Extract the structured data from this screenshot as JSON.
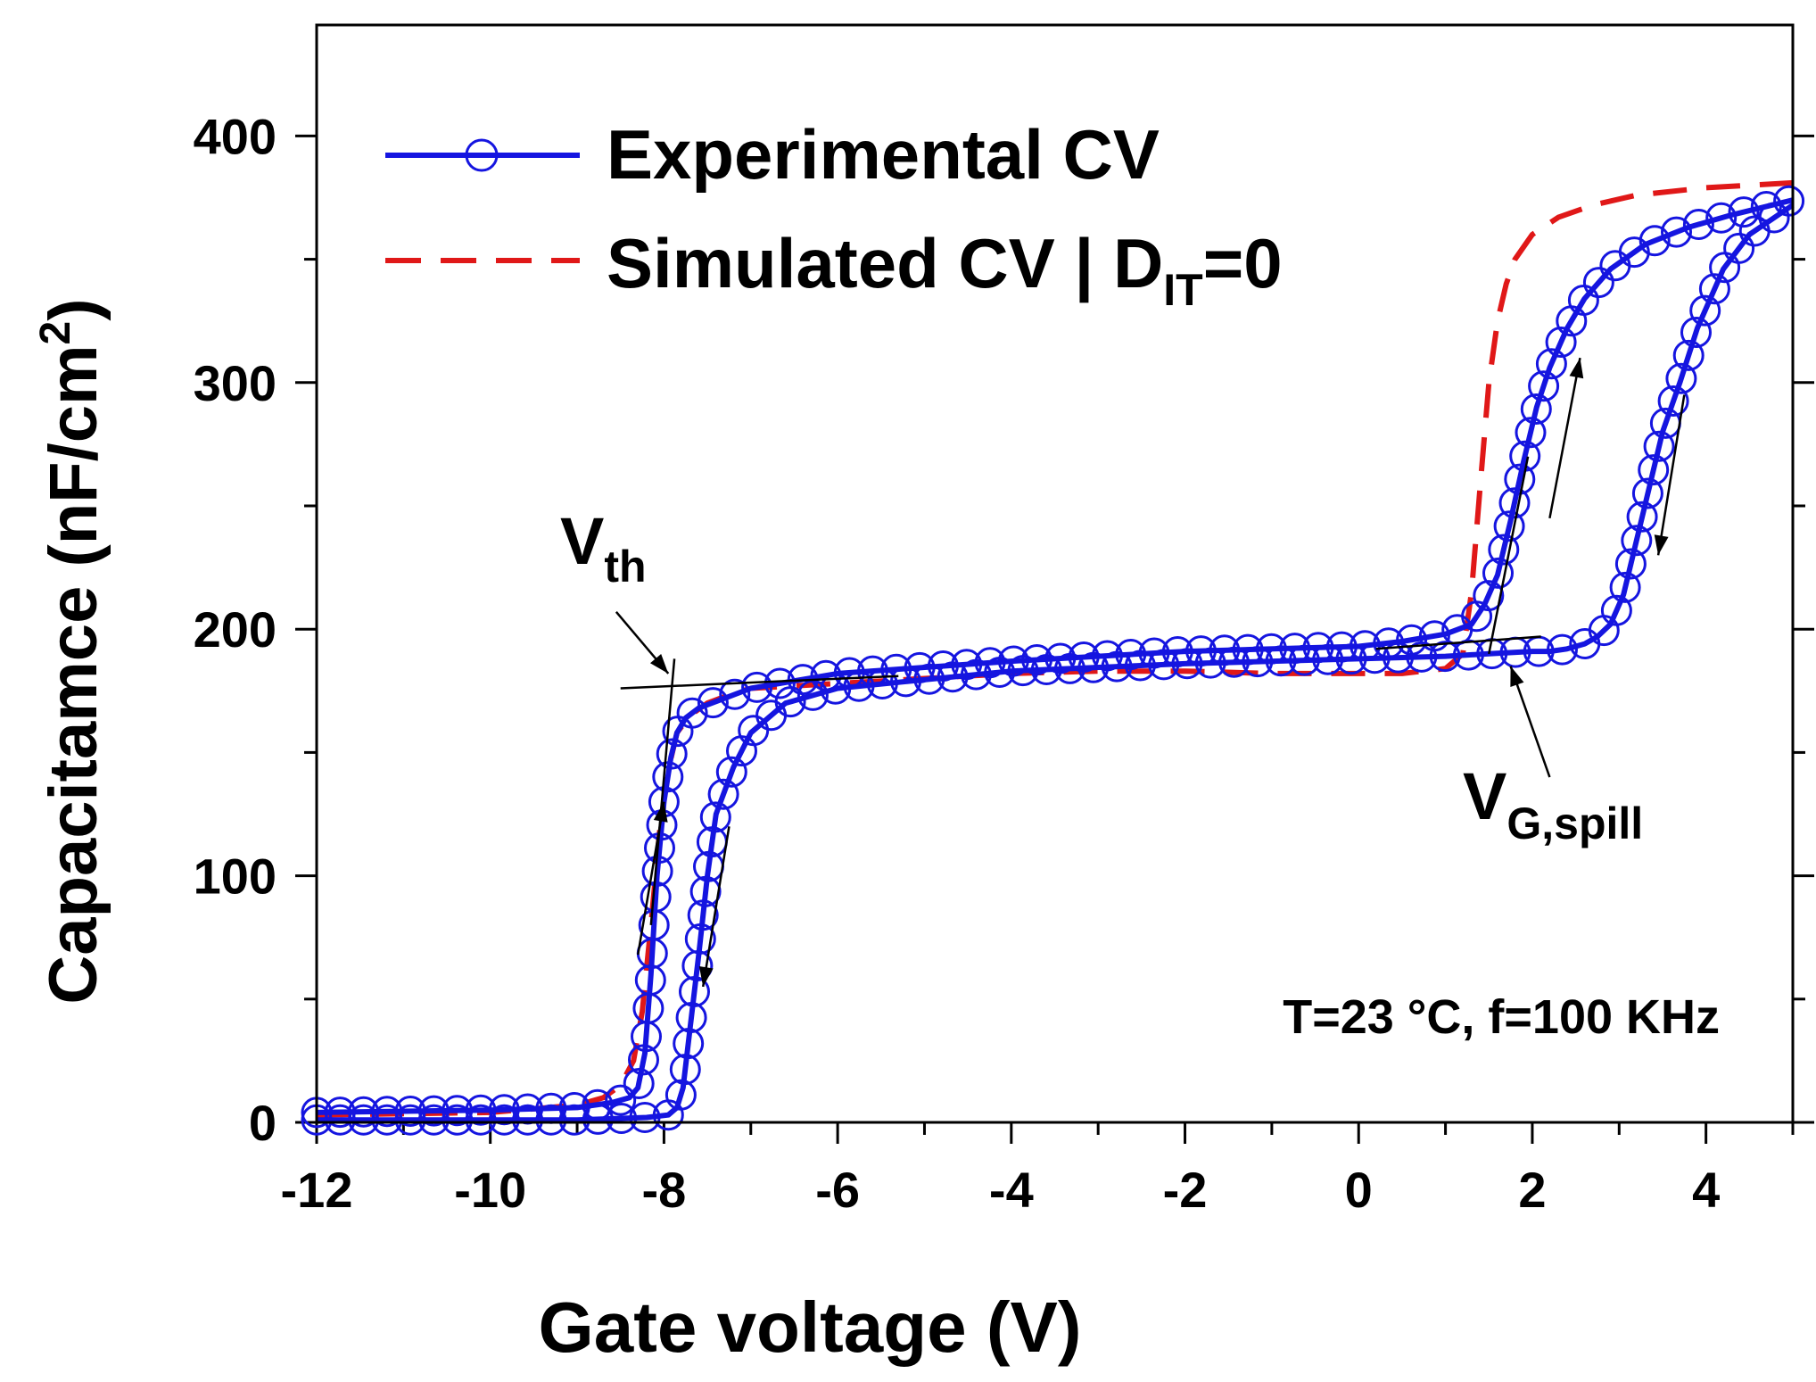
{
  "chart_data": {
    "type": "line",
    "title": "",
    "xlabel": "Gate voltage  (V)",
    "ylabel": "Capacitamce  (nF/cm",
    "ylabel_sup": "2",
    "ylabel_close": ")",
    "xlim": [
      -12,
      5
    ],
    "ylim": [
      0,
      445
    ],
    "xticks": [
      -12,
      -10,
      -8,
      -6,
      -4,
      -2,
      0,
      2,
      4
    ],
    "xtick_labels": [
      "-12",
      "-10",
      "-8",
      "-6",
      "-4",
      "-2",
      "0",
      "2",
      "4"
    ],
    "yticks": [
      0,
      100,
      200,
      300,
      400
    ],
    "ytick_labels": [
      "0",
      "100",
      "200",
      "300",
      "400"
    ],
    "legend": {
      "placement": "top-left",
      "entries": [
        {
          "label": "Experimental CV",
          "color": "#1515e0",
          "style": "solid-circle"
        },
        {
          "label_main": "Simulated CV | D",
          "label_sub": "IT",
          "label_tail": "=0",
          "color": "#e01818",
          "style": "dashed"
        }
      ]
    },
    "annotations": {
      "vth": {
        "main": "V",
        "sub": "th",
        "x": -8.0,
        "y": 177
      },
      "vspill": {
        "main": "V",
        "sub": "G,spill",
        "x": 1.6,
        "y": 196
      },
      "conditions": "T=23 °C, f=100 KHz"
    },
    "series": [
      {
        "name": "Experimental CV (up sweep)",
        "color": "#1515e0",
        "x": [
          -12,
          -10,
          -9,
          -8.6,
          -8.4,
          -8.3,
          -8.22,
          -8.15,
          -8.08,
          -8.0,
          -7.92,
          -7.85,
          -7.75,
          -7.6,
          -7.3,
          -7.0,
          -6,
          -4,
          -2,
          0,
          0.5,
          1.0,
          1.3,
          1.45,
          1.6,
          1.75,
          1.9,
          2.05,
          2.2,
          2.4,
          2.6,
          2.9,
          3.3,
          3.8,
          4.3,
          5
        ],
        "values": [
          4,
          5,
          6,
          8,
          10,
          14,
          28,
          60,
          100,
          130,
          148,
          158,
          164,
          168,
          172,
          176,
          182,
          187,
          191,
          193,
          195,
          198,
          202,
          210,
          222,
          244,
          268,
          290,
          306,
          322,
          334,
          346,
          356,
          363,
          368,
          374
        ]
      },
      {
        "name": "Experimental CV (down sweep)",
        "color": "#1515e0",
        "x": [
          5,
          4.5,
          4.2,
          3.9,
          3.7,
          3.5,
          3.35,
          3.2,
          3.05,
          2.9,
          2.75,
          2.6,
          2.4,
          2.2,
          2.0,
          1.5,
          1,
          0,
          -2,
          -4,
          -6,
          -6.6,
          -7.0,
          -7.2,
          -7.4,
          -7.5,
          -7.6,
          -7.7,
          -7.78,
          -7.85,
          -7.95,
          -8.2,
          -9,
          -10,
          -12
        ],
        "values": [
          372,
          360,
          346,
          322,
          300,
          280,
          258,
          236,
          214,
          202,
          197,
          194,
          192,
          191,
          191,
          190,
          189,
          188,
          186,
          183,
          176,
          170,
          158,
          144,
          125,
          100,
          68,
          38,
          14,
          6,
          3,
          2,
          1,
          1,
          1
        ]
      },
      {
        "name": "Simulated CV | DIT=0",
        "color": "#e01818",
        "x": [
          -12,
          -10,
          -9,
          -8.7,
          -8.5,
          -8.35,
          -8.25,
          -8.15,
          -8.05,
          -7.95,
          -7.85,
          -7.7,
          -7.5,
          -7.2,
          -7.0,
          -6,
          -5,
          -4,
          -3,
          -2,
          -1,
          0,
          0.5,
          1.0,
          1.2,
          1.3,
          1.4,
          1.5,
          1.6,
          1.7,
          1.8,
          2.0,
          2.3,
          2.7,
          3.2,
          4,
          5
        ],
        "values": [
          3,
          4,
          7,
          10,
          15,
          25,
          45,
          80,
          118,
          143,
          158,
          165,
          170,
          174,
          176,
          178,
          180,
          182,
          183,
          183,
          182,
          182,
          182,
          184,
          190,
          215,
          258,
          300,
          325,
          340,
          350,
          360,
          367,
          372,
          376,
          379,
          381
        ]
      }
    ]
  }
}
